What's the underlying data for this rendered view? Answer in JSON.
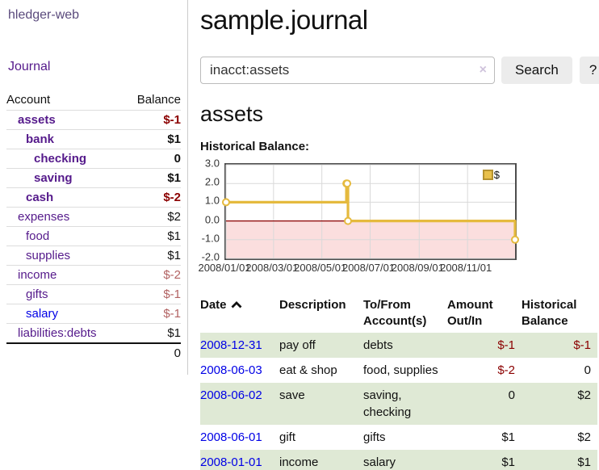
{
  "brand": "hledger-web",
  "nav": {
    "journal": "Journal"
  },
  "sidebar": {
    "columns": {
      "account": "Account",
      "balance": "Balance"
    },
    "accounts": [
      {
        "name": "assets",
        "balance": "$-1"
      },
      {
        "name": "bank",
        "balance": "$1"
      },
      {
        "name": "checking",
        "balance": "0"
      },
      {
        "name": "saving",
        "balance": "$1"
      },
      {
        "name": "cash",
        "balance": "$-2"
      },
      {
        "name": "expenses",
        "balance": "$2"
      },
      {
        "name": "food",
        "balance": "$1"
      },
      {
        "name": "supplies",
        "balance": "$1"
      },
      {
        "name": "income",
        "balance": "$-2"
      },
      {
        "name": "gifts",
        "balance": "$-1"
      },
      {
        "name": "salary",
        "balance": "$-1"
      },
      {
        "name": "liabilities:debts",
        "balance": "$1"
      }
    ],
    "total": "0"
  },
  "page": {
    "title": "sample.journal",
    "account_title": "assets",
    "chart_label": "Historical Balance:"
  },
  "search": {
    "value": "inacct:assets",
    "clear_icon": "×",
    "search_button": "Search",
    "help_button": "?"
  },
  "chart_data": {
    "type": "line",
    "step": true,
    "title": "Historical Balance:",
    "x_range": [
      "2008-01-01",
      "2008-12-31"
    ],
    "ylim": [
      -2,
      3
    ],
    "yticks": [
      "3.0",
      "2.0",
      "1.0",
      "0.0",
      "-1.0",
      "-2.0"
    ],
    "xticks": [
      {
        "date": "2008-01-01",
        "label": "2008/01/01"
      },
      {
        "date": "2008-03-01",
        "label": "2008/03/01"
      },
      {
        "date": "2008-05-01",
        "label": "2008/05/01"
      },
      {
        "date": "2008-07-01",
        "label": "2008/07/01"
      },
      {
        "date": "2008-09-01",
        "label": "2008/09/01"
      },
      {
        "date": "2008-11-01",
        "label": "2008/11/01"
      }
    ],
    "series": [
      {
        "name": "$",
        "color": "#e5ba3e",
        "points": [
          {
            "date": "2008-01-01",
            "value": 1
          },
          {
            "date": "2008-06-01",
            "value": 2
          },
          {
            "date": "2008-06-02",
            "value": 2
          },
          {
            "date": "2008-06-03",
            "value": 0
          },
          {
            "date": "2008-12-31",
            "value": -1
          }
        ]
      }
    ],
    "legend": {
      "label": "$",
      "position": "top-right"
    },
    "styles": {
      "negative_fill": "#fbdede",
      "zero_line": "#8b0000",
      "grid": "#d9d9d9",
      "border": "#4d4d4d"
    }
  },
  "register": {
    "headers": {
      "date": "Date",
      "description": "Description",
      "accounts": "To/From Account(s)",
      "amount": "Amount Out/In",
      "balance": "Historical Balance"
    },
    "rows": [
      {
        "date": "2008-12-31",
        "description": "pay off",
        "accounts": "debts",
        "amount": "$-1",
        "balance": "$-1"
      },
      {
        "date": "2008-06-03",
        "description": "eat & shop",
        "accounts": "food, supplies",
        "amount": "$-2",
        "balance": "0"
      },
      {
        "date": "2008-06-02",
        "description": "save",
        "accounts": "saving, checking",
        "amount": "0",
        "balance": "$2"
      },
      {
        "date": "2008-06-01",
        "description": "gift",
        "accounts": "gifts",
        "amount": "$1",
        "balance": "$2"
      },
      {
        "date": "2008-01-01",
        "description": "income",
        "accounts": "salary",
        "amount": "$1",
        "balance": "$1"
      }
    ]
  },
  "colors": {
    "link_purple": "#551a8b",
    "link_blue": "#0000e6",
    "negative_strong": "#8b0000",
    "negative_soft": "#b26262",
    "row_stripe": "#dfe9d5",
    "chart_line": "#e5ba3e"
  }
}
